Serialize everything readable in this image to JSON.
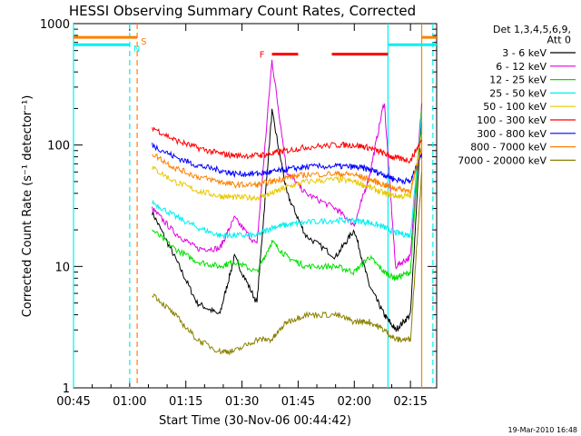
{
  "chart_data": {
    "type": "line",
    "title": "HESSI Observing Summary Count Rates, Corrected",
    "xlabel": "Start Time (30-Nov-06 00:44:42)",
    "ylabel": "Corrected Count Rate (s⁻¹ detector⁻¹)",
    "y_scale": "log",
    "ylim": [
      1,
      1000
    ],
    "xlim": [
      "00:45",
      "02:22"
    ],
    "x_ticks": [
      "00:45",
      "01:00",
      "01:15",
      "01:30",
      "01:45",
      "02:00",
      "02:15"
    ],
    "y_ticks": [
      "1",
      "10",
      "100",
      "1000"
    ],
    "legend_position": "right",
    "legend_header": [
      "Det 1,3,4,5,6,9,",
      "Att 0"
    ],
    "series": [
      {
        "name": "3 - 6 keV",
        "color": "#000000",
        "x": [
          "01:06",
          "01:12",
          "01:18",
          "01:24",
          "01:28",
          "01:34",
          "01:38",
          "01:42",
          "01:47",
          "01:55",
          "02:00",
          "02:04",
          "02:08",
          "02:11",
          "02:15",
          "02:18"
        ],
        "values": [
          28,
          12,
          5,
          4,
          12,
          5,
          190,
          40,
          18,
          12,
          20,
          7,
          4,
          3,
          4,
          180
        ]
      },
      {
        "name": "6 - 12 keV",
        "color": "#e000e0",
        "x": [
          "01:06",
          "01:12",
          "01:18",
          "01:24",
          "01:28",
          "01:34",
          "01:38",
          "01:42",
          "01:47",
          "01:55",
          "02:00",
          "02:04",
          "02:08",
          "02:11",
          "02:15",
          "02:18"
        ],
        "values": [
          30,
          19,
          14,
          14,
          25,
          15,
          500,
          60,
          40,
          30,
          22,
          55,
          230,
          10,
          12,
          220
        ]
      },
      {
        "name": "12 - 25 keV",
        "color": "#00e000",
        "x": [
          "01:06",
          "01:12",
          "01:18",
          "01:24",
          "01:28",
          "01:34",
          "01:38",
          "01:42",
          "01:47",
          "01:55",
          "02:00",
          "02:04",
          "02:08",
          "02:11",
          "02:15",
          "02:18"
        ],
        "values": [
          20,
          14,
          11,
          10,
          11,
          9,
          16,
          12,
          10,
          10,
          9,
          12,
          9,
          8,
          9,
          200
        ]
      },
      {
        "name": "25 - 50 keV",
        "color": "#00f0f0",
        "x": [
          "01:06",
          "01:12",
          "01:18",
          "01:24",
          "01:28",
          "01:34",
          "01:38",
          "01:42",
          "01:47",
          "01:55",
          "02:00",
          "02:04",
          "02:08",
          "02:11",
          "02:15",
          "02:18"
        ],
        "values": [
          34,
          26,
          21,
          18,
          18,
          18,
          21,
          22,
          23,
          24,
          24,
          23,
          21,
          19,
          18,
          180
        ]
      },
      {
        "name": "50 - 100 keV",
        "color": "#e8c800",
        "x": [
          "01:06",
          "01:12",
          "01:18",
          "01:24",
          "01:28",
          "01:34",
          "01:38",
          "01:42",
          "01:47",
          "01:55",
          "02:00",
          "02:04",
          "02:08",
          "02:11",
          "02:15",
          "02:18"
        ],
        "values": [
          65,
          50,
          42,
          38,
          37,
          37,
          40,
          45,
          50,
          52,
          50,
          45,
          40,
          38,
          38,
          120
        ]
      },
      {
        "name": "100 - 300 keV",
        "color": "#ff0000",
        "x": [
          "01:06",
          "01:12",
          "01:18",
          "01:24",
          "01:28",
          "01:34",
          "01:38",
          "01:42",
          "01:47",
          "01:55",
          "02:00",
          "02:04",
          "02:08",
          "02:11",
          "02:15",
          "02:18"
        ],
        "values": [
          140,
          110,
          95,
          85,
          82,
          82,
          85,
          90,
          96,
          100,
          100,
          95,
          85,
          78,
          75,
          110
        ]
      },
      {
        "name": "300 - 800 keV",
        "color": "#0000ff",
        "x": [
          "01:06",
          "01:12",
          "01:18",
          "01:24",
          "01:28",
          "01:34",
          "01:38",
          "01:42",
          "01:47",
          "01:55",
          "02:00",
          "02:04",
          "02:08",
          "02:11",
          "02:15",
          "02:18"
        ],
        "values": [
          100,
          80,
          68,
          62,
          58,
          58,
          60,
          63,
          66,
          67,
          66,
          63,
          57,
          52,
          50,
          85
        ]
      },
      {
        "name": "800 - 7000 keV",
        "color": "#ff8000",
        "x": [
          "01:06",
          "01:12",
          "01:18",
          "01:24",
          "01:28",
          "01:34",
          "01:38",
          "01:42",
          "01:47",
          "01:55",
          "02:00",
          "02:04",
          "02:08",
          "02:11",
          "02:15",
          "02:18"
        ],
        "values": [
          85,
          65,
          55,
          50,
          47,
          47,
          50,
          54,
          57,
          58,
          57,
          52,
          47,
          44,
          42,
          95
        ]
      },
      {
        "name": "7000 - 20000 keV",
        "color": "#8b8000",
        "x": [
          "01:06",
          "01:12",
          "01:18",
          "01:24",
          "01:28",
          "01:34",
          "01:38",
          "01:42",
          "01:47",
          "01:55",
          "02:00",
          "02:04",
          "02:08",
          "02:11",
          "02:15",
          "02:18"
        ],
        "values": [
          6,
          4,
          2.5,
          2,
          2,
          2.5,
          2.5,
          3.5,
          4,
          4,
          3.5,
          3.5,
          3,
          2.5,
          2.5,
          60
        ]
      }
    ],
    "annotations": [
      {
        "label": "N",
        "color": "#00f0f0",
        "x": "01:00",
        "bar": [
          "00:45",
          "01:00"
        ],
        "bar_y": 670
      },
      {
        "label": "S",
        "color": "#ff8000",
        "x": "01:02",
        "bar": [
          "00:45",
          "01:02"
        ],
        "bar_y": 770
      },
      {
        "label": "F",
        "color": "#ff0000",
        "x": "01:38",
        "bars": [
          [
            "01:38",
            "01:45"
          ],
          [
            "01:54",
            "02:09"
          ]
        ],
        "bar_y": 560
      }
    ],
    "vertical_markers": [
      {
        "x": "00:45",
        "color": "#00f0f0",
        "style": "solid"
      },
      {
        "x": "01:00",
        "color": "#00f0f0",
        "style": "dashed"
      },
      {
        "x": "01:02",
        "color": "#ff8000",
        "style": "dashed"
      },
      {
        "x": "02:09",
        "color": "#00f0f0",
        "style": "solid"
      },
      {
        "x": "02:18",
        "color": "#ff8000",
        "style": "solid"
      },
      {
        "x": "02:21",
        "color": "#00f0f0",
        "style": "dashed"
      }
    ],
    "right_bars": [
      {
        "color": "#00f0f0",
        "range": [
          "02:09",
          "02:22"
        ],
        "y": 670
      },
      {
        "color": "#ff8000",
        "range": [
          "02:18",
          "02:22"
        ],
        "y": 770
      }
    ]
  },
  "footer": {
    "timestamp": "19-Mar-2010 16:48"
  }
}
